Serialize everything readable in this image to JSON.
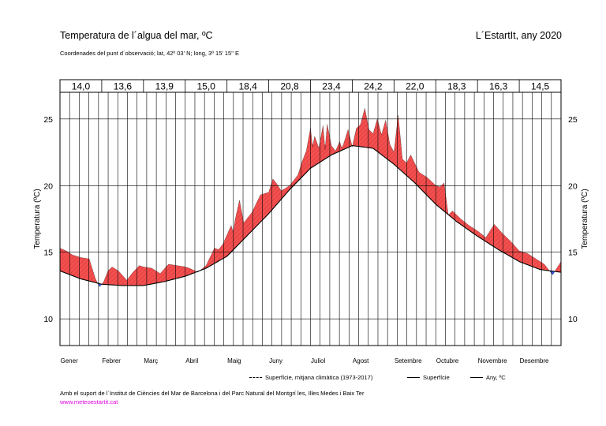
{
  "header": {
    "title": "Temperatura de l´algua del mar, ºC",
    "subtitle": "Coordenades del punt d´observació; lat, 42º 03' N; long, 3º 15' 15\" E",
    "place": "L´EstartIt, any 2020"
  },
  "legend": {
    "climatology": "Superfície, mitjana climàtica (1973-2017)",
    "surface": "Superfície",
    "annual": "Any,   ºC"
  },
  "footer": {
    "support": "Amb el suport de l´Institut de Ciències del Mar de Barcelona i del Parc Natural del Montgrí les, Illes Medes i Baix Ter",
    "website": "www.meteoestartit.cat"
  },
  "colors": {
    "above": "#f25050",
    "below": "#3f5ef0"
  },
  "chart_data": {
    "type": "area",
    "xlabel": "",
    "ylabel": "Temperatura (ºC)",
    "ylim": [
      8,
      27
    ],
    "yticks": [
      10,
      15,
      20,
      25
    ],
    "months": [
      "Gener",
      "Febrer",
      "Març",
      "Abril",
      "Maig",
      "Juny",
      "Juliol",
      "Agost",
      "Setembre",
      "Octubre",
      "Novembre",
      "Desembre"
    ],
    "monthly_means": [
      "14,0",
      "13,6",
      "13,9",
      "15,0",
      "18,4",
      "20,8",
      "23,4",
      "24,2",
      "22,0",
      "18,3",
      "16,3",
      "14,5"
    ],
    "climatology": {
      "x": [
        0,
        0.5,
        1,
        1.5,
        2,
        2.5,
        3,
        3.5,
        4,
        4.5,
        5,
        5.5,
        6,
        6.5,
        7,
        7.5,
        8,
        8.5,
        9,
        9.5,
        10,
        10.5,
        11,
        11.5,
        12
      ],
      "y": [
        13.6,
        13.0,
        12.6,
        12.5,
        12.5,
        12.8,
        13.2,
        13.8,
        14.7,
        16.3,
        17.9,
        19.7,
        21.3,
        22.3,
        23.0,
        22.8,
        21.6,
        20.2,
        18.6,
        17.3,
        16.2,
        15.2,
        14.3,
        13.7,
        13.5
      ]
    },
    "surface": {
      "x": [
        0,
        0.15,
        0.3,
        0.5,
        0.7,
        0.85,
        0.95,
        1.05,
        1.15,
        1.25,
        1.4,
        1.6,
        1.75,
        1.9,
        2.0,
        2.2,
        2.4,
        2.6,
        2.8,
        3.0,
        3.1,
        3.3,
        3.5,
        3.7,
        3.8,
        3.9,
        4.0,
        4.1,
        4.15,
        4.2,
        4.3,
        4.4,
        4.6,
        4.8,
        5.0,
        5.1,
        5.2,
        5.3,
        5.5,
        5.7,
        5.8,
        5.9,
        6.0,
        6.05,
        6.1,
        6.2,
        6.3,
        6.35,
        6.4,
        6.5,
        6.6,
        6.7,
        6.75,
        6.8,
        6.9,
        7.0,
        7.1,
        7.2,
        7.3,
        7.4,
        7.5,
        7.6,
        7.7,
        7.8,
        7.9,
        8.0,
        8.1,
        8.2,
        8.3,
        8.4,
        8.6,
        8.8,
        9.0,
        9.1,
        9.2,
        9.3,
        9.4,
        9.6,
        9.8,
        10.0,
        10.2,
        10.4,
        10.6,
        10.8,
        11.0,
        11.2,
        11.4,
        11.6,
        11.8,
        12.0
      ],
      "y": [
        15.3,
        15.1,
        14.8,
        14.6,
        14.5,
        13.0,
        12.4,
        12.8,
        13.6,
        13.9,
        13.6,
        12.9,
        13.5,
        14.0,
        13.9,
        13.8,
        13.4,
        14.1,
        14.0,
        13.9,
        13.8,
        13.5,
        14.0,
        15.3,
        15.2,
        15.6,
        16.3,
        17.0,
        16.5,
        17.5,
        18.9,
        17.2,
        18.0,
        19.3,
        19.5,
        20.5,
        20.1,
        19.6,
        20.0,
        20.8,
        21.8,
        22.6,
        24.3,
        22.9,
        23.7,
        22.8,
        24.5,
        22.7,
        24.6,
        23.0,
        22.6,
        23.3,
        22.8,
        23.2,
        24.2,
        22.9,
        24.3,
        24.6,
        25.8,
        24.2,
        23.9,
        25.0,
        23.8,
        24.9,
        23.1,
        22.5,
        25.3,
        22.0,
        21.7,
        22.3,
        21.0,
        20.6,
        20.0,
        19.9,
        20.2,
        17.8,
        18.1,
        17.5,
        17.0,
        16.6,
        16.1,
        17.1,
        16.4,
        15.8,
        15.1,
        14.9,
        14.5,
        14.1,
        13.3,
        14.3
      ]
    }
  }
}
